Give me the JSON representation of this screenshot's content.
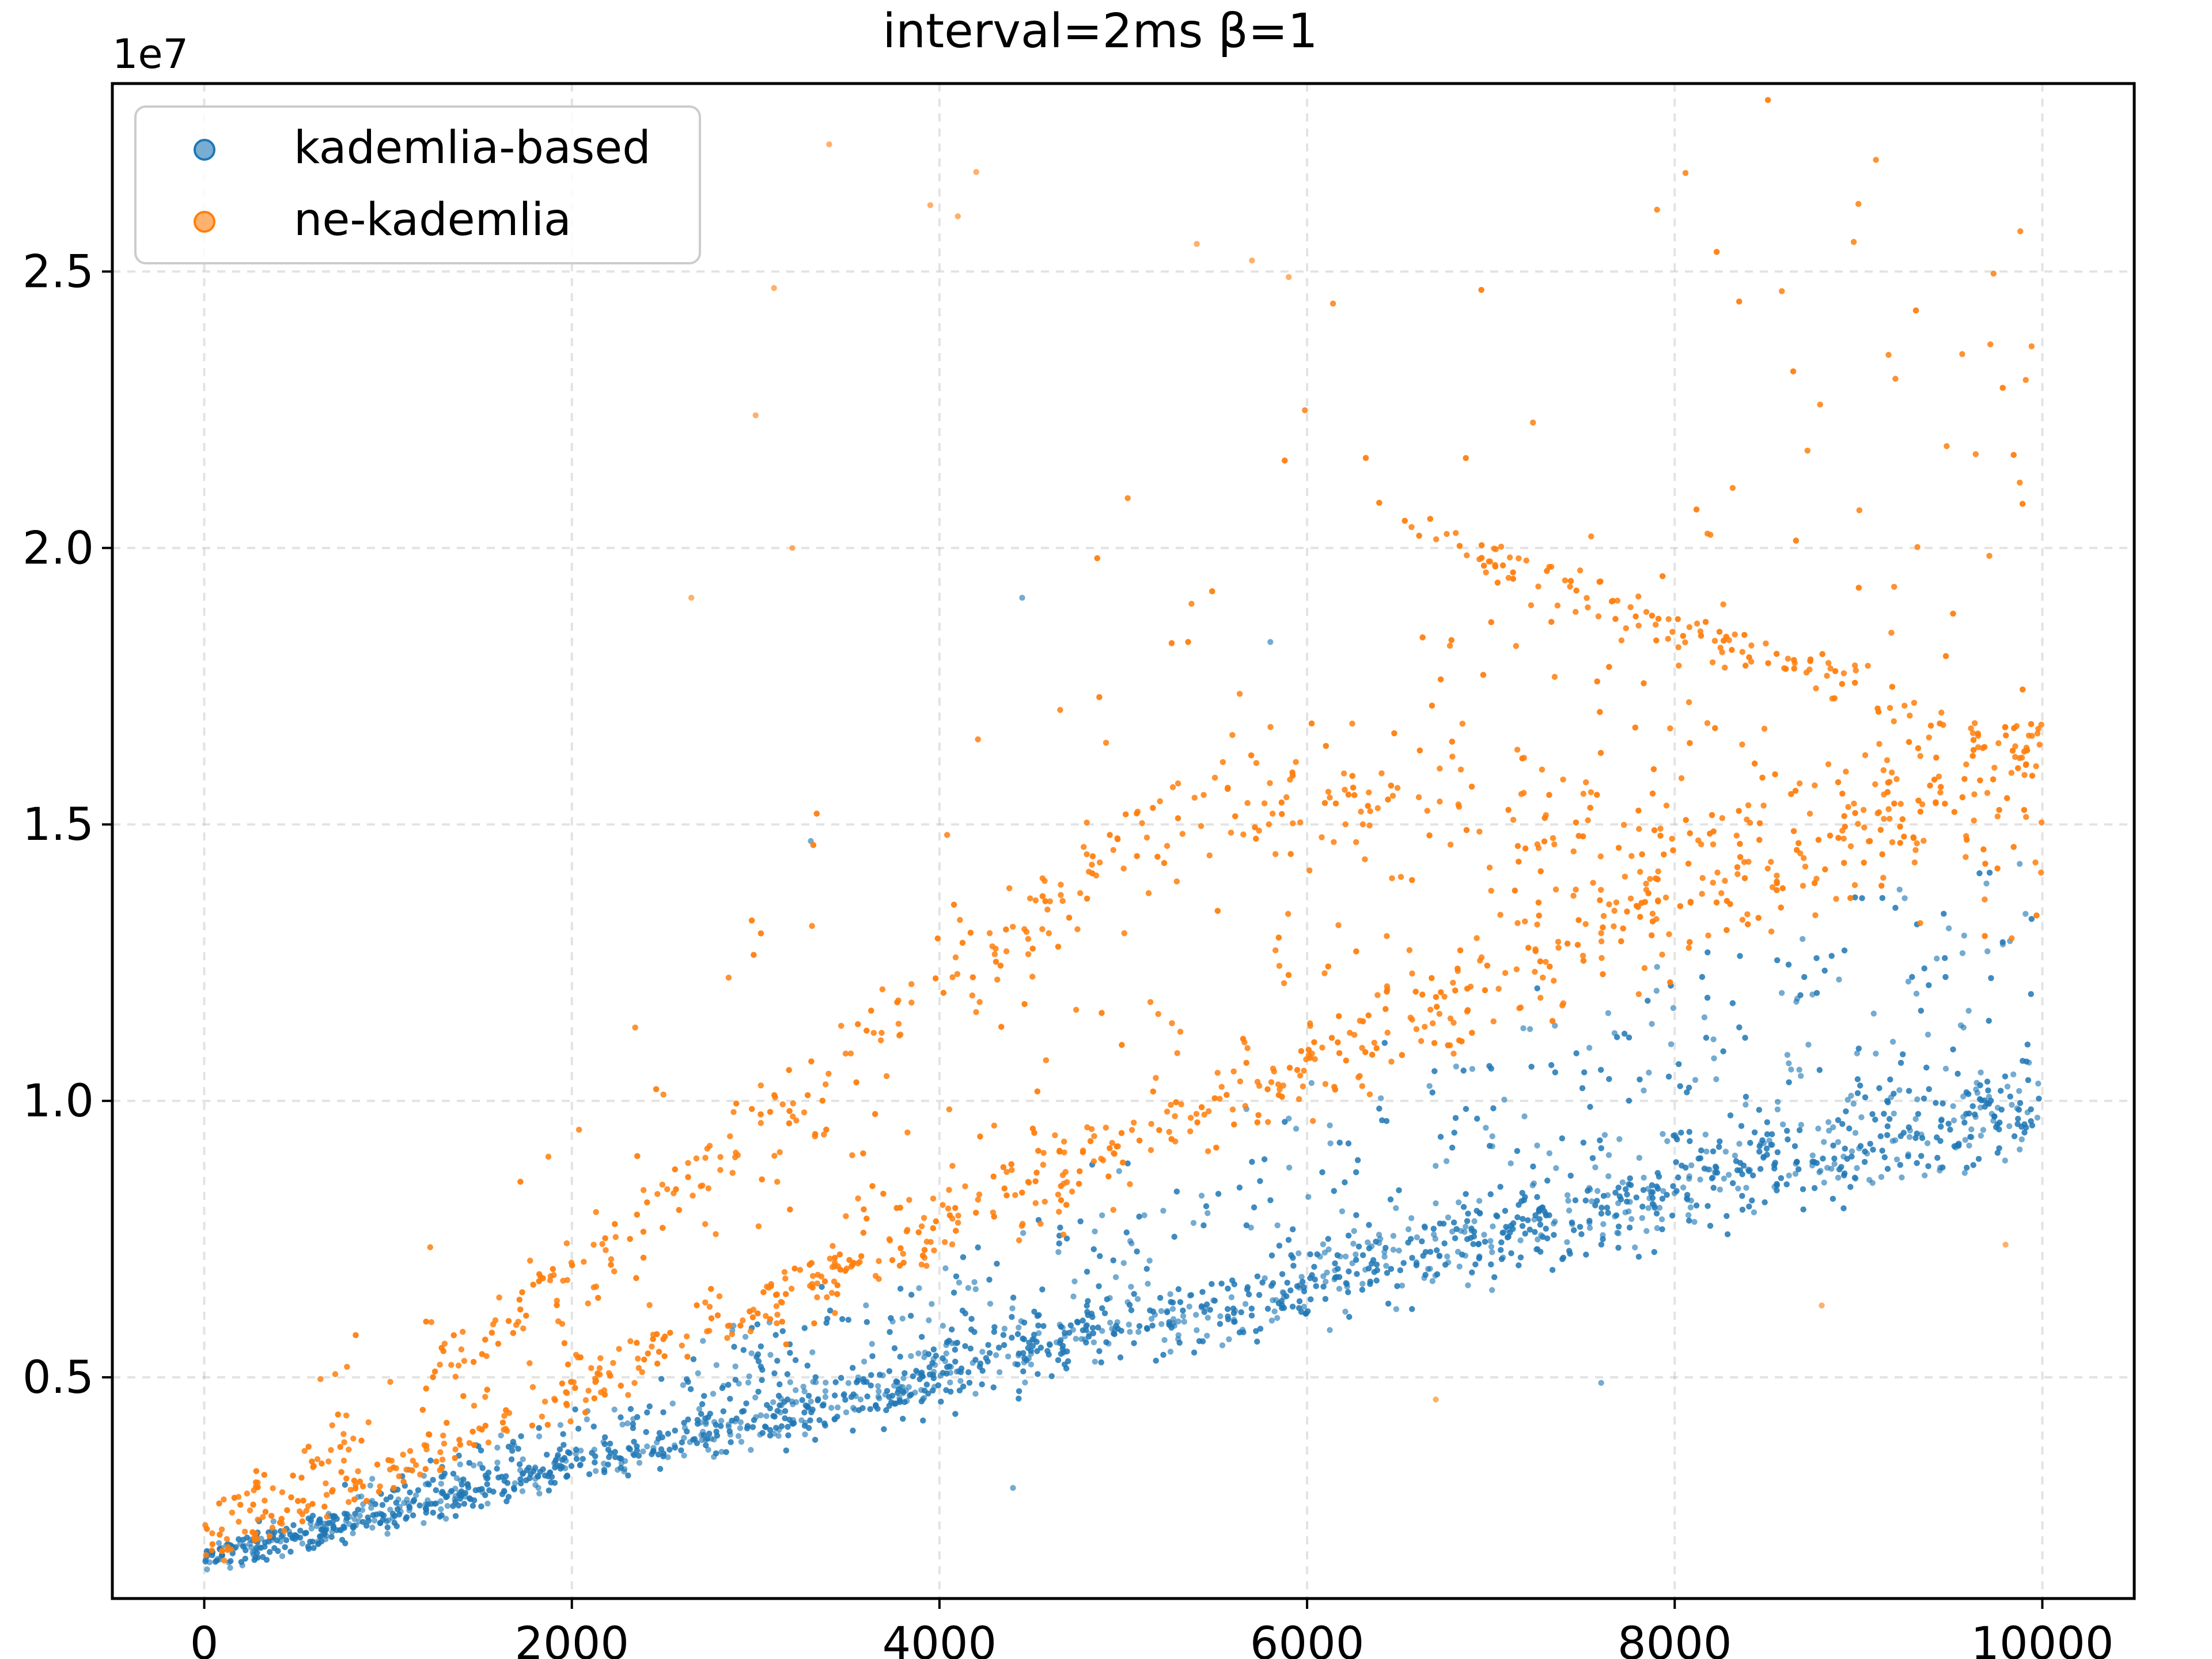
{
  "chart_data": {
    "type": "scatter",
    "title": "interval=2ms β=1",
    "xlabel": "",
    "ylabel": "",
    "y_offset_label": "1e7",
    "xlim": [
      -500,
      10500
    ],
    "ylim": [
      1000000.0,
      28400000.0
    ],
    "x_ticks": [
      0,
      2000,
      4000,
      6000,
      8000,
      10000
    ],
    "x_tick_labels": [
      "0",
      "2000",
      "4000",
      "6000",
      "8000",
      "10000"
    ],
    "y_ticks": [
      5000000,
      10000000,
      15000000,
      20000000,
      25000000
    ],
    "y_tick_labels": [
      "0.5",
      "1.0",
      "1.5",
      "2.0",
      "2.5"
    ],
    "grid": true,
    "legend_position": "top-left",
    "series": [
      {
        "name": "kademlia-based",
        "color": "#1f77b4",
        "x_range": [
          0,
          10000
        ],
        "trend": {
          "y_at_x0": 1700000,
          "y_at_x10000": 10000000
        },
        "upper_band_trend": {
          "y_at_x0": 1800000,
          "y_at_x10000": 13000000
        },
        "point_count": 10000,
        "notable_points": [
          {
            "x": 4450,
            "y": 19100000
          },
          {
            "x": 5800,
            "y": 18300000
          },
          {
            "x": 3300,
            "y": 14700000
          },
          {
            "x": 4400,
            "y": 3000000
          },
          {
            "x": 7600,
            "y": 4900000
          }
        ]
      },
      {
        "name": "ne-kademlia",
        "color": "#ff7f0e",
        "x_range": [
          0,
          10000
        ],
        "trend": {
          "y_at_x0": 1800000,
          "y_at_x10000": 16500000
        },
        "upper_band_trend": {
          "y_at_x0": 2000000,
          "y_at_x5500": 15800000,
          "y_at_x10000": 14500000
        },
        "descending_band": {
          "y_at_x7000": 19800000,
          "y_at_x10000": 16300000
        },
        "point_count": 10000,
        "notable_points": [
          {
            "x": 3400,
            "y": 27300000
          },
          {
            "x": 4200,
            "y": 26800000
          },
          {
            "x": 3950,
            "y": 26200000
          },
          {
            "x": 4100,
            "y": 26000000
          },
          {
            "x": 5400,
            "y": 25500000
          },
          {
            "x": 5700,
            "y": 25200000
          },
          {
            "x": 3100,
            "y": 24700000
          },
          {
            "x": 5900,
            "y": 24900000
          },
          {
            "x": 3000,
            "y": 22400000
          },
          {
            "x": 2650,
            "y": 19100000
          },
          {
            "x": 3200,
            "y": 20000000
          },
          {
            "x": 6700,
            "y": 4600000
          },
          {
            "x": 8800,
            "y": 6300000
          },
          {
            "x": 9800,
            "y": 7400000
          }
        ]
      }
    ]
  }
}
